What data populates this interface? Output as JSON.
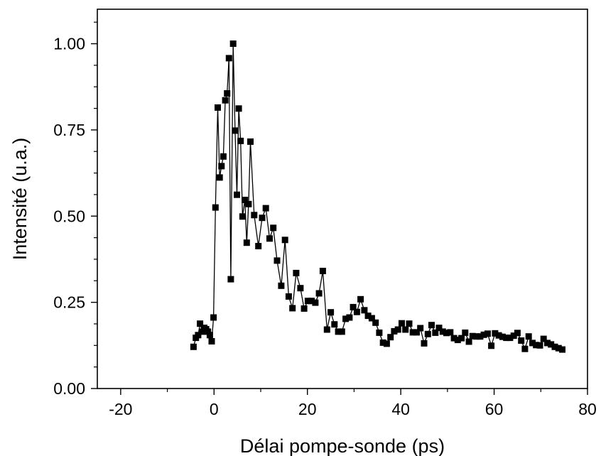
{
  "chart_data": {
    "type": "line",
    "xlabel": "Délai pompe-sonde (ps)",
    "ylabel": "Intensité (u.a.)",
    "xlim": [
      -25,
      80
    ],
    "ylim": [
      0,
      1.1
    ],
    "x_ticks": [
      -20,
      0,
      20,
      40,
      60,
      80
    ],
    "x_tick_labels": [
      "-20",
      "0",
      "20",
      "40",
      "60",
      "80"
    ],
    "y_ticks": [
      0,
      0.25,
      0.5,
      0.75,
      1.0
    ],
    "y_tick_labels": [
      "0.00",
      "0.25",
      "0.50",
      "0.75",
      "1.00"
    ],
    "grid": false,
    "marker": "square",
    "color": "#000000",
    "series": [
      {
        "points": [
          [
            -4.4,
            0.121
          ],
          [
            -3.9,
            0.147
          ],
          [
            -3.4,
            0.155
          ],
          [
            -3.0,
            0.188
          ],
          [
            -2.5,
            0.165
          ],
          [
            -2.1,
            0.176
          ],
          [
            -1.7,
            0.172
          ],
          [
            -1.3,
            0.165
          ],
          [
            -0.9,
            0.155
          ],
          [
            -0.5,
            0.137
          ],
          [
            -0.1,
            0.206
          ],
          [
            0.3,
            0.525
          ],
          [
            0.8,
            0.815
          ],
          [
            1.2,
            0.612
          ],
          [
            1.6,
            0.645
          ],
          [
            2.0,
            0.673
          ],
          [
            2.4,
            0.836
          ],
          [
            2.8,
            0.856
          ],
          [
            3.2,
            0.958
          ],
          [
            3.6,
            0.317
          ],
          [
            4.1,
            1.0
          ],
          [
            4.5,
            0.748
          ],
          [
            4.9,
            0.562
          ],
          [
            5.3,
            0.812
          ],
          [
            5.7,
            0.718
          ],
          [
            6.1,
            0.499
          ],
          [
            6.6,
            0.547
          ],
          [
            7.0,
            0.423
          ],
          [
            7.4,
            0.535
          ],
          [
            7.8,
            0.716
          ],
          [
            8.6,
            0.503
          ],
          [
            9.5,
            0.413
          ],
          [
            10.3,
            0.495
          ],
          [
            11.1,
            0.523
          ],
          [
            11.9,
            0.435
          ],
          [
            12.7,
            0.466
          ],
          [
            13.5,
            0.371
          ],
          [
            14.4,
            0.298
          ],
          [
            15.2,
            0.431
          ],
          [
            16.0,
            0.267
          ],
          [
            16.8,
            0.233
          ],
          [
            17.6,
            0.335
          ],
          [
            18.5,
            0.291
          ],
          [
            19.3,
            0.232
          ],
          [
            20.1,
            0.254
          ],
          [
            20.9,
            0.254
          ],
          [
            21.7,
            0.249
          ],
          [
            22.5,
            0.276
          ],
          [
            23.3,
            0.341
          ],
          [
            24.2,
            0.171
          ],
          [
            25.0,
            0.221
          ],
          [
            25.8,
            0.186
          ],
          [
            26.6,
            0.165
          ],
          [
            27.4,
            0.165
          ],
          [
            28.2,
            0.202
          ],
          [
            29.0,
            0.206
          ],
          [
            29.8,
            0.236
          ],
          [
            30.6,
            0.222
          ],
          [
            31.4,
            0.259
          ],
          [
            32.2,
            0.227
          ],
          [
            33.0,
            0.211
          ],
          [
            33.8,
            0.204
          ],
          [
            34.6,
            0.191
          ],
          [
            35.4,
            0.162
          ],
          [
            36.2,
            0.133
          ],
          [
            37.0,
            0.13
          ],
          [
            37.8,
            0.149
          ],
          [
            38.6,
            0.166
          ],
          [
            39.4,
            0.171
          ],
          [
            40.2,
            0.189
          ],
          [
            41.0,
            0.171
          ],
          [
            41.8,
            0.188
          ],
          [
            42.6,
            0.163
          ],
          [
            43.4,
            0.163
          ],
          [
            44.2,
            0.175
          ],
          [
            45.0,
            0.131
          ],
          [
            45.8,
            0.158
          ],
          [
            46.6,
            0.184
          ],
          [
            47.4,
            0.162
          ],
          [
            48.2,
            0.176
          ],
          [
            49.0,
            0.165
          ],
          [
            49.8,
            0.161
          ],
          [
            50.6,
            0.163
          ],
          [
            51.4,
            0.146
          ],
          [
            52.2,
            0.141
          ],
          [
            53.0,
            0.146
          ],
          [
            53.8,
            0.162
          ],
          [
            54.6,
            0.136
          ],
          [
            55.4,
            0.152
          ],
          [
            56.2,
            0.151
          ],
          [
            57.0,
            0.151
          ],
          [
            57.8,
            0.156
          ],
          [
            58.6,
            0.159
          ],
          [
            59.4,
            0.124
          ],
          [
            60.2,
            0.16
          ],
          [
            61.0,
            0.154
          ],
          [
            61.8,
            0.15
          ],
          [
            62.6,
            0.147
          ],
          [
            63.4,
            0.147
          ],
          [
            64.2,
            0.153
          ],
          [
            65.0,
            0.161
          ],
          [
            65.8,
            0.139
          ],
          [
            66.6,
            0.115
          ],
          [
            67.4,
            0.151
          ],
          [
            68.2,
            0.132
          ],
          [
            69.0,
            0.126
          ],
          [
            69.8,
            0.125
          ],
          [
            70.6,
            0.144
          ],
          [
            71.4,
            0.132
          ],
          [
            72.2,
            0.128
          ],
          [
            73.0,
            0.121
          ],
          [
            73.8,
            0.117
          ],
          [
            74.6,
            0.113
          ]
        ]
      }
    ]
  }
}
